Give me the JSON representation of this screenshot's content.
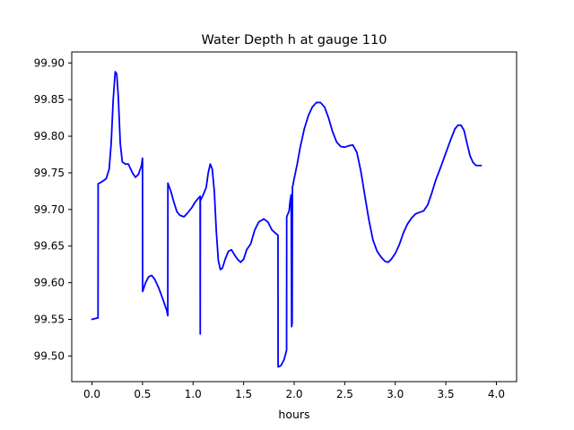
{
  "chart_data": {
    "type": "line",
    "title": "Water Depth h at gauge 110",
    "xlabel": "hours",
    "ylabel": "",
    "xlim": [
      -0.2,
      4.2
    ],
    "ylim": [
      99.465,
      99.915
    ],
    "xticks": [
      0.0,
      0.5,
      1.0,
      1.5,
      2.0,
      2.5,
      3.0,
      3.5,
      4.0
    ],
    "xtick_labels": [
      "0.0",
      "0.5",
      "1.0",
      "1.5",
      "2.0",
      "2.5",
      "3.0",
      "3.5",
      "4.0"
    ],
    "yticks": [
      99.5,
      99.55,
      99.6,
      99.65,
      99.7,
      99.75,
      99.8,
      99.85,
      99.9
    ],
    "ytick_labels": [
      "99.50",
      "99.55",
      "99.60",
      "99.65",
      "99.70",
      "99.75",
      "99.80",
      "99.85",
      "99.90"
    ],
    "grid": false,
    "legend": "none",
    "series": [
      {
        "color": "#0000ff",
        "points": [
          [
            0.0,
            99.55
          ],
          [
            0.03,
            99.551
          ],
          [
            0.06,
            99.552
          ],
          [
            0.061,
            99.735
          ],
          [
            0.1,
            99.738
          ],
          [
            0.14,
            99.742
          ],
          [
            0.17,
            99.755
          ],
          [
            0.19,
            99.79
          ],
          [
            0.21,
            99.85
          ],
          [
            0.23,
            99.888
          ],
          [
            0.245,
            99.885
          ],
          [
            0.26,
            99.855
          ],
          [
            0.28,
            99.79
          ],
          [
            0.3,
            99.765
          ],
          [
            0.33,
            99.762
          ],
          [
            0.36,
            99.762
          ],
          [
            0.4,
            99.75
          ],
          [
            0.43,
            99.744
          ],
          [
            0.46,
            99.748
          ],
          [
            0.49,
            99.76
          ],
          [
            0.5,
            99.77
          ],
          [
            0.501,
            99.588
          ],
          [
            0.53,
            99.6
          ],
          [
            0.56,
            99.608
          ],
          [
            0.59,
            99.61
          ],
          [
            0.62,
            99.605
          ],
          [
            0.66,
            99.593
          ],
          [
            0.7,
            99.578
          ],
          [
            0.74,
            99.562
          ],
          [
            0.75,
            99.555
          ],
          [
            0.751,
            99.736
          ],
          [
            0.78,
            99.725
          ],
          [
            0.81,
            99.71
          ],
          [
            0.84,
            99.697
          ],
          [
            0.87,
            99.692
          ],
          [
            0.91,
            99.69
          ],
          [
            0.95,
            99.696
          ],
          [
            0.99,
            99.703
          ],
          [
            1.02,
            99.71
          ],
          [
            1.05,
            99.715
          ],
          [
            1.07,
            99.718
          ],
          [
            1.071,
            99.53
          ],
          [
            1.072,
            99.712
          ],
          [
            1.1,
            99.72
          ],
          [
            1.13,
            99.73
          ],
          [
            1.15,
            99.75
          ],
          [
            1.17,
            99.762
          ],
          [
            1.19,
            99.755
          ],
          [
            1.21,
            99.725
          ],
          [
            1.23,
            99.67
          ],
          [
            1.25,
            99.63
          ],
          [
            1.27,
            99.618
          ],
          [
            1.29,
            99.62
          ],
          [
            1.32,
            99.633
          ],
          [
            1.35,
            99.643
          ],
          [
            1.38,
            99.645
          ],
          [
            1.41,
            99.638
          ],
          [
            1.44,
            99.632
          ],
          [
            1.47,
            99.628
          ],
          [
            1.5,
            99.632
          ],
          [
            1.53,
            99.645
          ],
          [
            1.57,
            99.653
          ],
          [
            1.61,
            99.672
          ],
          [
            1.65,
            99.683
          ],
          [
            1.7,
            99.687
          ],
          [
            1.74,
            99.683
          ],
          [
            1.78,
            99.672
          ],
          [
            1.82,
            99.667
          ],
          [
            1.84,
            99.665
          ],
          [
            1.841,
            99.485
          ],
          [
            1.87,
            99.487
          ],
          [
            1.9,
            99.495
          ],
          [
            1.925,
            99.508
          ],
          [
            1.926,
            99.69
          ],
          [
            1.95,
            99.698
          ],
          [
            1.96,
            99.712
          ],
          [
            1.97,
            99.72
          ],
          [
            1.975,
            99.54
          ],
          [
            1.98,
            99.545
          ],
          [
            1.983,
            99.73
          ],
          [
            2.0,
            99.742
          ],
          [
            2.03,
            99.762
          ],
          [
            2.06,
            99.785
          ],
          [
            2.1,
            99.81
          ],
          [
            2.14,
            99.828
          ],
          [
            2.18,
            99.84
          ],
          [
            2.22,
            99.846
          ],
          [
            2.26,
            99.846
          ],
          [
            2.3,
            99.84
          ],
          [
            2.34,
            99.825
          ],
          [
            2.38,
            99.806
          ],
          [
            2.42,
            99.792
          ],
          [
            2.46,
            99.786
          ],
          [
            2.5,
            99.785
          ],
          [
            2.54,
            99.787
          ],
          [
            2.58,
            99.788
          ],
          [
            2.62,
            99.778
          ],
          [
            2.66,
            99.752
          ],
          [
            2.7,
            99.718
          ],
          [
            2.74,
            99.685
          ],
          [
            2.78,
            99.658
          ],
          [
            2.82,
            99.643
          ],
          [
            2.86,
            99.635
          ],
          [
            2.9,
            99.629
          ],
          [
            2.93,
            99.628
          ],
          [
            2.96,
            99.632
          ],
          [
            3.0,
            99.64
          ],
          [
            3.04,
            99.652
          ],
          [
            3.08,
            99.668
          ],
          [
            3.12,
            99.68
          ],
          [
            3.16,
            99.688
          ],
          [
            3.2,
            99.694
          ],
          [
            3.24,
            99.696
          ],
          [
            3.28,
            99.698
          ],
          [
            3.32,
            99.706
          ],
          [
            3.36,
            99.722
          ],
          [
            3.4,
            99.74
          ],
          [
            3.45,
            99.758
          ],
          [
            3.5,
            99.777
          ],
          [
            3.55,
            99.796
          ],
          [
            3.59,
            99.81
          ],
          [
            3.62,
            99.815
          ],
          [
            3.65,
            99.815
          ],
          [
            3.68,
            99.808
          ],
          [
            3.71,
            99.79
          ],
          [
            3.74,
            99.773
          ],
          [
            3.77,
            99.764
          ],
          [
            3.8,
            99.76
          ],
          [
            3.82,
            99.76
          ],
          [
            3.85,
            99.76
          ]
        ]
      }
    ]
  }
}
